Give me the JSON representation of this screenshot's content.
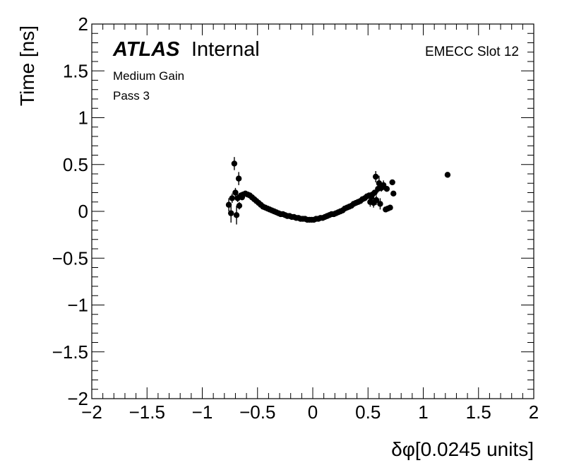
{
  "chart_data": {
    "type": "scatter",
    "title": "",
    "xlabel": "δφ[0.0245 units]",
    "ylabel": "Time [ns]",
    "xlim": [
      -2,
      2
    ],
    "ylim": [
      -2,
      2
    ],
    "xticks": [
      -2,
      -1.5,
      -1,
      -0.5,
      0,
      0.5,
      1,
      1.5,
      2
    ],
    "yticks": [
      -2,
      -1.5,
      -1,
      -0.5,
      0,
      0.5,
      1,
      1.5,
      2
    ],
    "xtick_labels": [
      "−2",
      "−1.5",
      "−1",
      "−0.5",
      "0",
      "0.5",
      "1",
      "1.5",
      "2"
    ],
    "ytick_labels": [
      "−2",
      "−1.5",
      "−1",
      "−0.5",
      "0",
      "0.5",
      "1",
      "1.5",
      "2"
    ],
    "grid": false,
    "annotations": {
      "atlas": "ATLAS",
      "internal": "Internal",
      "gain": "Medium Gain",
      "pass": "Pass 3",
      "slot": "EMECC Slot 12"
    },
    "marker_color": "#000000",
    "series": [
      {
        "points": [
          {
            "x": -0.76,
            "y": 0.07,
            "err": 0.07
          },
          {
            "x": -0.74,
            "y": -0.02,
            "err": 0.1
          },
          {
            "x": -0.73,
            "y": 0.14,
            "err": 0.05
          },
          {
            "x": -0.71,
            "y": 0.51,
            "err": 0.07
          },
          {
            "x": -0.7,
            "y": 0.2,
            "err": 0.05
          },
          {
            "x": -0.69,
            "y": -0.04,
            "err": 0.1
          },
          {
            "x": -0.68,
            "y": 0.14,
            "err": 0.04
          },
          {
            "x": -0.67,
            "y": 0.35,
            "err": 0.07
          },
          {
            "x": -0.665,
            "y": 0.06,
            "err": 0.04
          },
          {
            "x": -0.65,
            "y": 0.17,
            "err": 0.03
          },
          {
            "x": -0.64,
            "y": 0.15,
            "err": 0.03
          },
          {
            "x": -0.63,
            "y": 0.18,
            "err": 0.02
          },
          {
            "x": -0.61,
            "y": 0.19,
            "err": 0.02
          },
          {
            "x": -0.59,
            "y": 0.18,
            "err": 0.02
          },
          {
            "x": -0.57,
            "y": 0.17,
            "err": 0.01
          },
          {
            "x": -0.55,
            "y": 0.15,
            "err": 0.01
          },
          {
            "x": -0.53,
            "y": 0.13,
            "err": 0.01
          },
          {
            "x": -0.51,
            "y": 0.11,
            "err": 0.01
          },
          {
            "x": -0.49,
            "y": 0.09,
            "err": 0.01
          },
          {
            "x": -0.47,
            "y": 0.07,
            "err": 0.01
          },
          {
            "x": -0.45,
            "y": 0.05,
            "err": 0.01
          },
          {
            "x": -0.43,
            "y": 0.04,
            "err": 0.01
          },
          {
            "x": -0.41,
            "y": 0.03,
            "err": 0.01
          },
          {
            "x": -0.39,
            "y": 0.02,
            "err": 0.01
          },
          {
            "x": -0.37,
            "y": 0.01,
            "err": 0.01
          },
          {
            "x": -0.35,
            "y": 0.0,
            "err": 0.01
          },
          {
            "x": -0.33,
            "y": -0.01,
            "err": 0.01
          },
          {
            "x": -0.31,
            "y": -0.02,
            "err": 0.01
          },
          {
            "x": -0.29,
            "y": -0.03,
            "err": 0.01
          },
          {
            "x": -0.27,
            "y": -0.03,
            "err": 0.01
          },
          {
            "x": -0.25,
            "y": -0.04,
            "err": 0.01
          },
          {
            "x": -0.23,
            "y": -0.05,
            "err": 0.01
          },
          {
            "x": -0.21,
            "y": -0.05,
            "err": 0.01
          },
          {
            "x": -0.19,
            "y": -0.06,
            "err": 0.01
          },
          {
            "x": -0.17,
            "y": -0.06,
            "err": 0.01
          },
          {
            "x": -0.15,
            "y": -0.07,
            "err": 0.01
          },
          {
            "x": -0.13,
            "y": -0.07,
            "err": 0.01
          },
          {
            "x": -0.11,
            "y": -0.08,
            "err": 0.01
          },
          {
            "x": -0.09,
            "y": -0.08,
            "err": 0.01
          },
          {
            "x": -0.07,
            "y": -0.08,
            "err": 0.01
          },
          {
            "x": -0.05,
            "y": -0.09,
            "err": 0.01
          },
          {
            "x": -0.03,
            "y": -0.09,
            "err": 0.01
          },
          {
            "x": -0.01,
            "y": -0.09,
            "err": 0.01
          },
          {
            "x": 0.01,
            "y": -0.09,
            "err": 0.01
          },
          {
            "x": 0.03,
            "y": -0.08,
            "err": 0.01
          },
          {
            "x": 0.05,
            "y": -0.08,
            "err": 0.01
          },
          {
            "x": 0.07,
            "y": -0.07,
            "err": 0.01
          },
          {
            "x": 0.09,
            "y": -0.07,
            "err": 0.01
          },
          {
            "x": 0.11,
            "y": -0.06,
            "err": 0.01
          },
          {
            "x": 0.13,
            "y": -0.05,
            "err": 0.01
          },
          {
            "x": 0.15,
            "y": -0.04,
            "err": 0.01
          },
          {
            "x": 0.17,
            "y": -0.03,
            "err": 0.01
          },
          {
            "x": 0.19,
            "y": -0.03,
            "err": 0.01
          },
          {
            "x": 0.21,
            "y": -0.02,
            "err": 0.01
          },
          {
            "x": 0.23,
            "y": -0.01,
            "err": 0.01
          },
          {
            "x": 0.25,
            "y": 0.0,
            "err": 0.01
          },
          {
            "x": 0.27,
            "y": 0.01,
            "err": 0.01
          },
          {
            "x": 0.29,
            "y": 0.03,
            "err": 0.01
          },
          {
            "x": 0.31,
            "y": 0.04,
            "err": 0.01
          },
          {
            "x": 0.33,
            "y": 0.05,
            "err": 0.01
          },
          {
            "x": 0.35,
            "y": 0.06,
            "err": 0.01
          },
          {
            "x": 0.37,
            "y": 0.08,
            "err": 0.01
          },
          {
            "x": 0.39,
            "y": 0.09,
            "err": 0.01
          },
          {
            "x": 0.41,
            "y": 0.1,
            "err": 0.01
          },
          {
            "x": 0.43,
            "y": 0.11,
            "err": 0.01
          },
          {
            "x": 0.45,
            "y": 0.13,
            "err": 0.01
          },
          {
            "x": 0.47,
            "y": 0.14,
            "err": 0.02
          },
          {
            "x": 0.49,
            "y": 0.16,
            "err": 0.02
          },
          {
            "x": 0.51,
            "y": 0.17,
            "err": 0.02
          },
          {
            "x": 0.52,
            "y": 0.1,
            "err": 0.05
          },
          {
            "x": 0.53,
            "y": 0.15,
            "err": 0.03
          },
          {
            "x": 0.54,
            "y": 0.18,
            "err": 0.02
          },
          {
            "x": 0.55,
            "y": 0.09,
            "err": 0.05
          },
          {
            "x": 0.56,
            "y": 0.2,
            "err": 0.03
          },
          {
            "x": 0.57,
            "y": 0.37,
            "err": 0.06
          },
          {
            "x": 0.575,
            "y": 0.12,
            "err": 0.05
          },
          {
            "x": 0.59,
            "y": 0.24,
            "err": 0.04
          },
          {
            "x": 0.6,
            "y": 0.3,
            "err": 0.08
          },
          {
            "x": 0.61,
            "y": 0.08,
            "err": 0.06
          },
          {
            "x": 0.62,
            "y": 0.25,
            "err": 0.04
          },
          {
            "x": 0.64,
            "y": 0.28,
            "err": 0.05
          },
          {
            "x": 0.66,
            "y": 0.02,
            "err": 0.02
          },
          {
            "x": 0.67,
            "y": 0.24,
            "err": 0.03
          },
          {
            "x": 0.68,
            "y": 0.03,
            "err": 0.02
          },
          {
            "x": 0.7,
            "y": 0.04,
            "err": 0.02
          },
          {
            "x": 0.72,
            "y": 0.31,
            "err": 0.02
          },
          {
            "x": 0.73,
            "y": 0.19,
            "err": 0.02
          },
          {
            "x": 1.22,
            "y": 0.39,
            "err": 0.01
          }
        ]
      }
    ]
  }
}
